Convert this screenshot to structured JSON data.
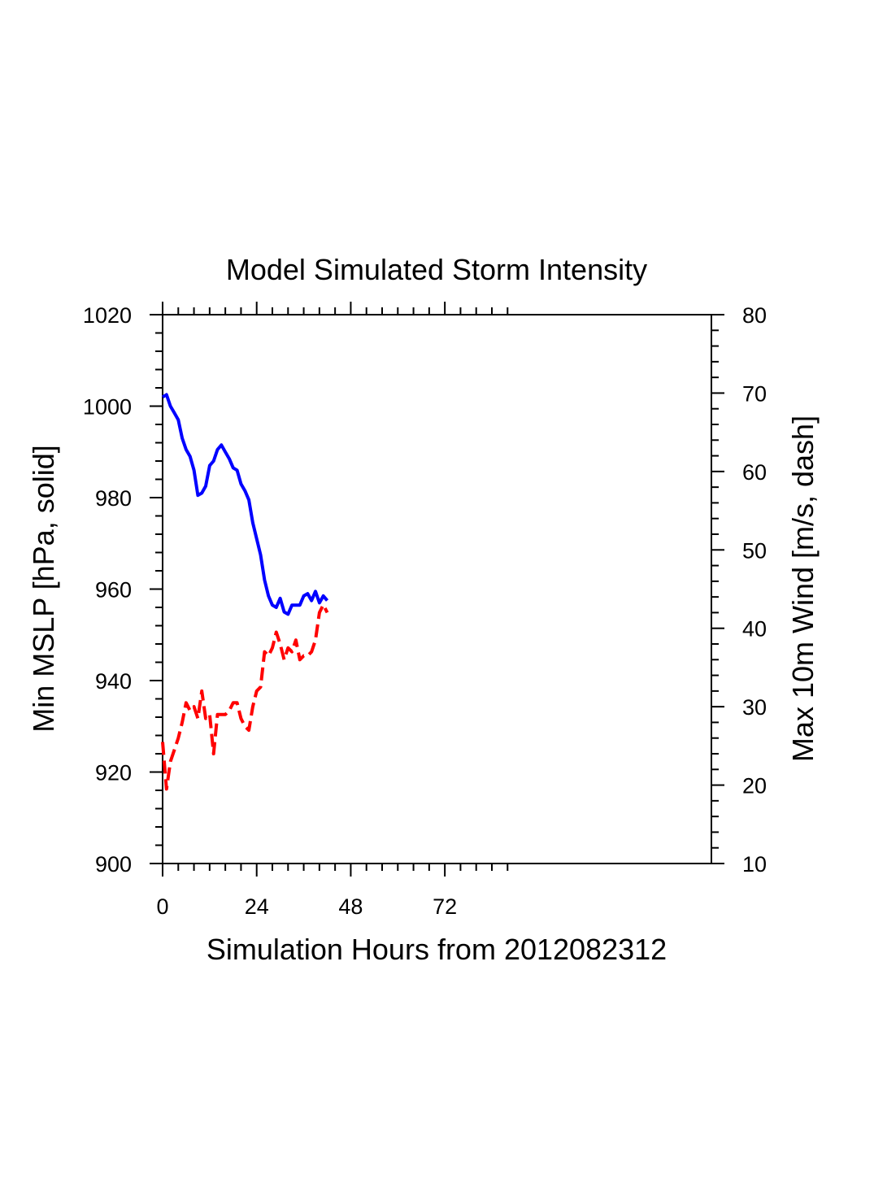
{
  "chart_data": {
    "type": "line",
    "title": "Model Simulated Storm Intensity",
    "xlabel": "Simulation Hours from 2012082312",
    "ylabel_left": "Min MSLP  [hPa, solid]",
    "ylabel_right": "Max 10m Wind  [m/s, dash]",
    "xlim": [
      0,
      140
    ],
    "x_ticks": [
      0,
      24,
      48,
      72
    ],
    "y_left_lim": [
      900,
      1020
    ],
    "y_left_ticks": [
      900,
      920,
      940,
      960,
      980,
      1000,
      1020
    ],
    "y_right_lim": [
      10,
      80
    ],
    "y_right_ticks": [
      10,
      20,
      30,
      40,
      50,
      60,
      70,
      80
    ],
    "grid": false,
    "series": [
      {
        "name": "",
        "axis": "left",
        "style": "solid",
        "color": "#0000ff",
        "x": [
          0,
          1,
          2,
          3,
          4,
          5,
          6,
          7,
          8,
          9,
          10,
          11,
          12,
          13,
          14,
          15,
          16,
          17,
          18,
          19,
          20,
          21,
          22,
          23,
          24,
          25,
          26,
          27,
          28,
          29,
          30,
          31,
          32,
          33,
          34,
          35,
          36,
          37,
          38,
          39,
          40,
          41,
          42
        ],
        "y": [
          1002,
          1002.5,
          1000,
          998.5,
          997,
          993,
          990.5,
          989,
          986,
          980.5,
          981,
          982.5,
          987,
          988,
          990.5,
          991.5,
          990,
          988.5,
          986.5,
          986,
          983,
          981.5,
          979.5,
          974.5,
          971,
          967.5,
          962,
          958.5,
          956.5,
          956,
          958,
          955,
          954.5,
          956.5,
          956.5,
          956.5,
          958.5,
          959,
          957.5,
          959.5,
          957,
          958.5,
          957.5
        ]
      },
      {
        "name": "",
        "axis": "right",
        "style": "dash",
        "color": "#ff0000",
        "x": [
          0,
          1,
          2,
          3,
          4,
          5,
          6,
          7,
          8,
          9,
          10,
          11,
          12,
          13,
          14,
          15,
          16,
          17,
          18,
          19,
          20,
          21,
          22,
          23,
          24,
          25,
          26,
          27,
          28,
          29,
          30,
          31,
          32,
          33,
          34,
          35,
          36,
          37,
          38,
          39,
          40,
          41,
          42
        ],
        "y": [
          25.5,
          19.5,
          23,
          24.5,
          26,
          28,
          30.5,
          29.5,
          30,
          28.5,
          32,
          28.5,
          29,
          24,
          29,
          29,
          29,
          29.5,
          30.5,
          30.5,
          28.5,
          27.5,
          27,
          30,
          32,
          32.5,
          37,
          36.5,
          37.5,
          39.5,
          38,
          36,
          37.5,
          37,
          38.5,
          36,
          36.5,
          36.5,
          37,
          38.5,
          42,
          43,
          42
        ]
      }
    ]
  }
}
